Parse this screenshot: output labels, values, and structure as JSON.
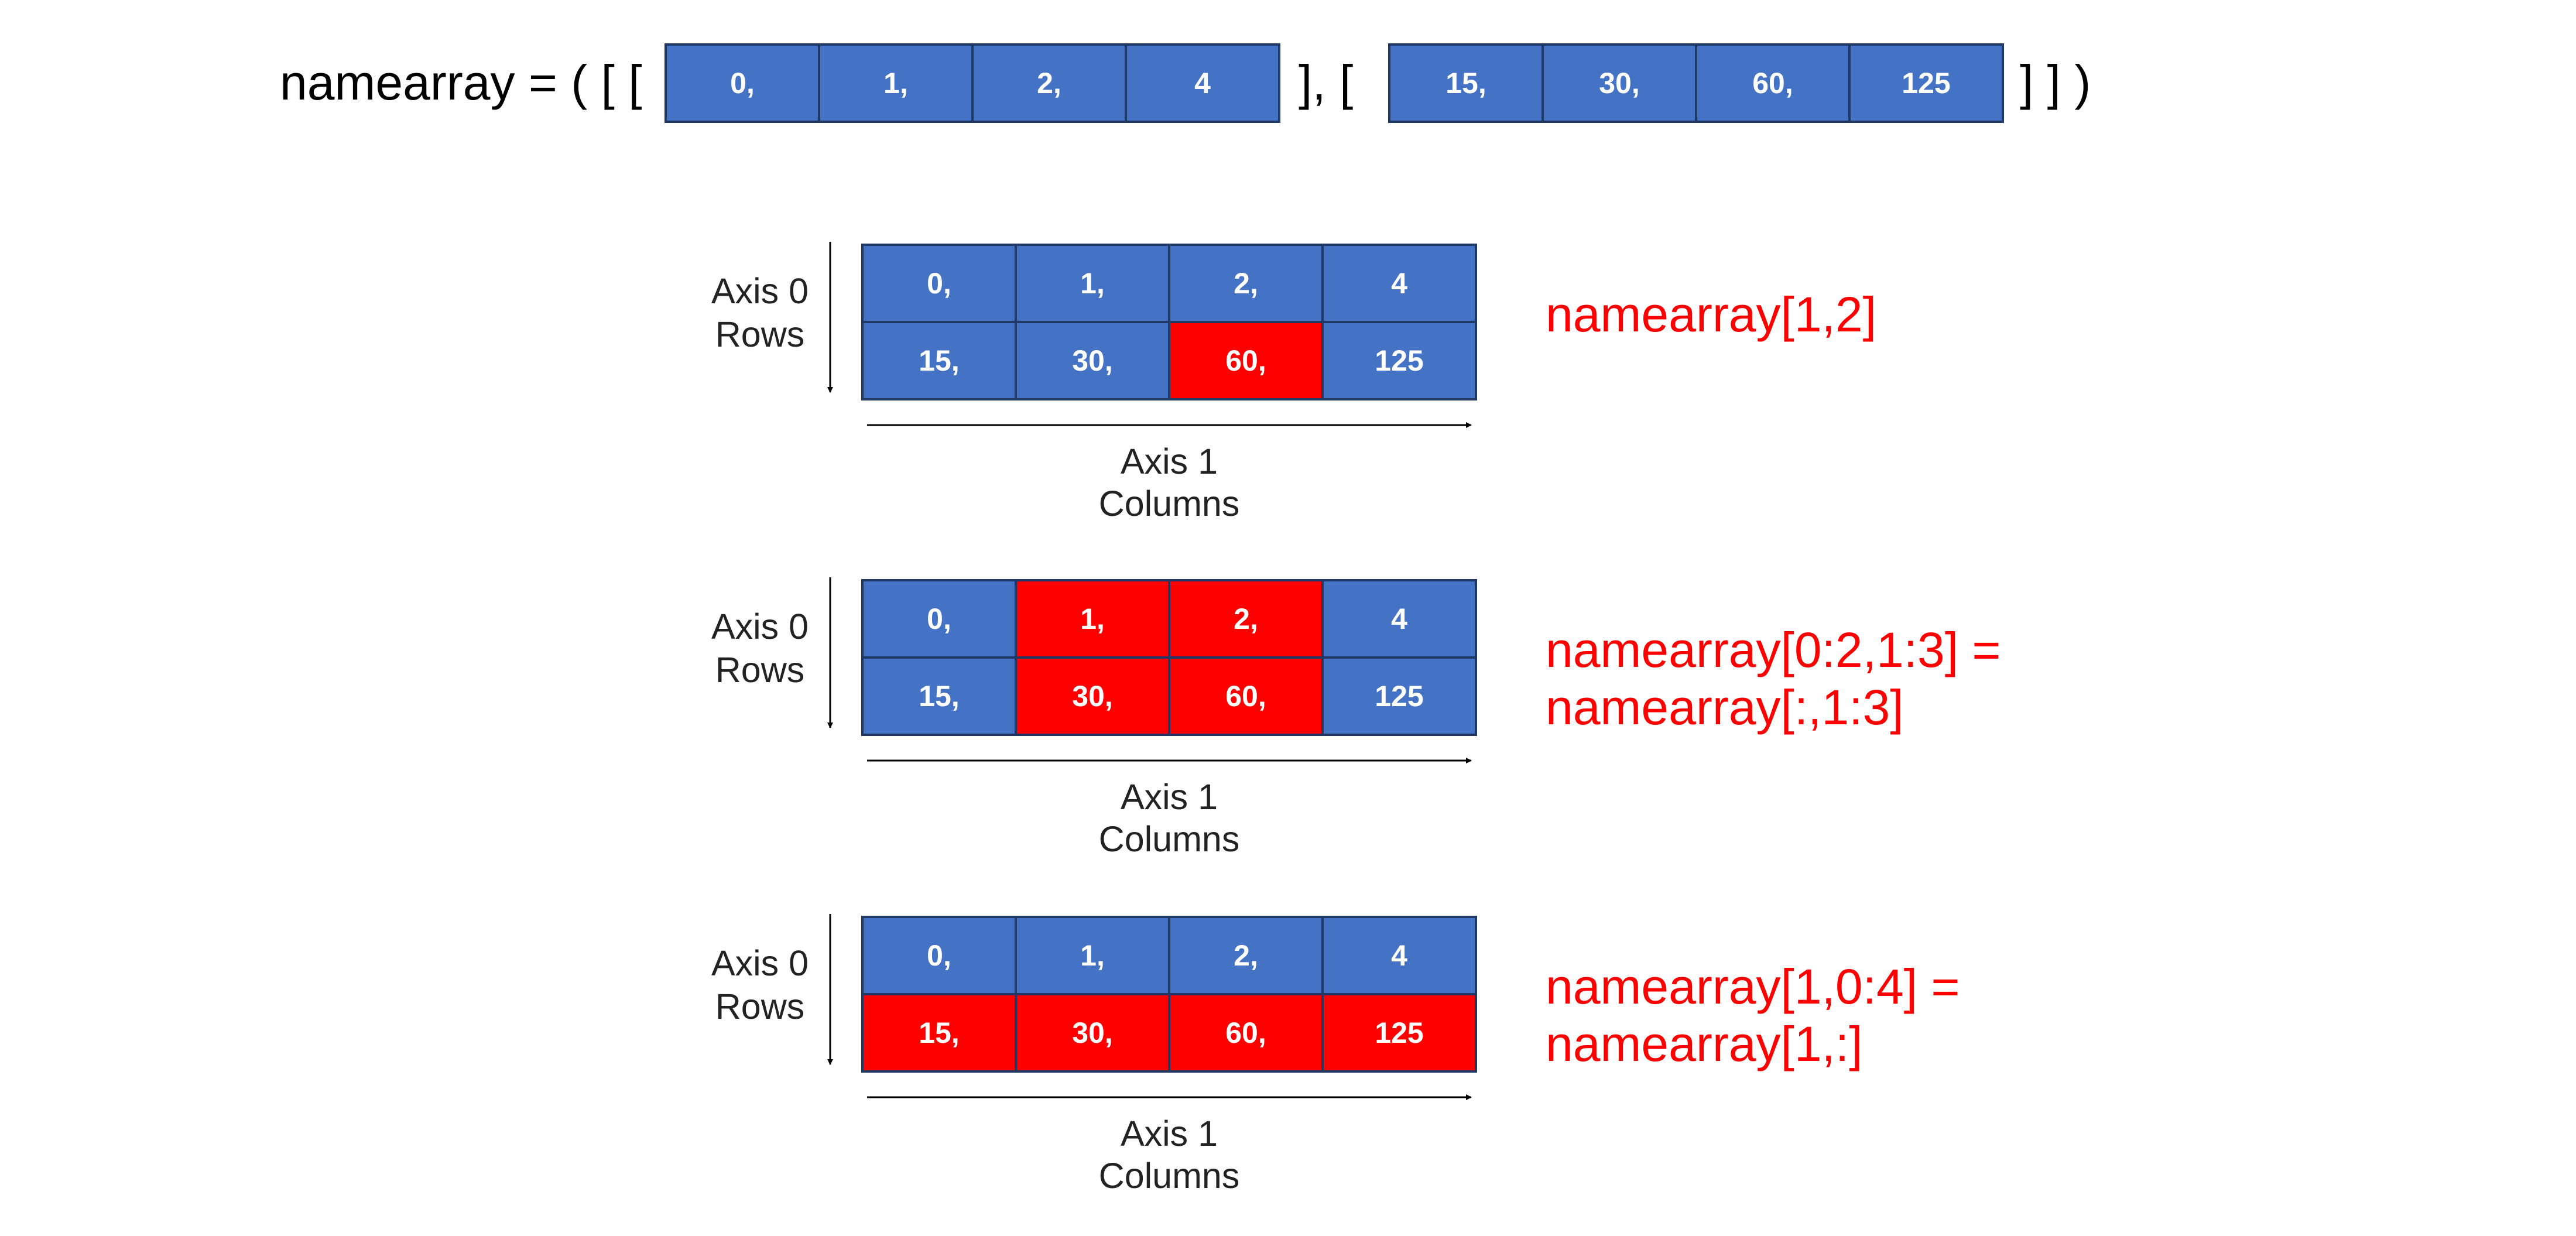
{
  "header": {
    "lead": "namearray = ( [ [",
    "middle": "], [",
    "tail": "] ] )",
    "row0": [
      "0,",
      "1,",
      "2,",
      "4"
    ],
    "row1": [
      "15,",
      "30,",
      "60,",
      "125"
    ]
  },
  "colors": {
    "cell": "#4472c4",
    "highlight": "#ff0000",
    "border": "#1f3864",
    "label": "#ff0000"
  },
  "examples": [
    {
      "axis0": [
        "Axis 0",
        "Rows"
      ],
      "axis1": [
        "Axis 1",
        "Columns"
      ],
      "grid": [
        [
          "0,",
          "1,",
          "2,",
          "4"
        ],
        [
          "15,",
          "30,",
          "60,",
          "125"
        ]
      ],
      "highlight": [
        [
          false,
          false,
          false,
          false
        ],
        [
          false,
          false,
          true,
          false
        ]
      ],
      "label": [
        "namearray[1,2]"
      ]
    },
    {
      "axis0": [
        "Axis 0",
        "Rows"
      ],
      "axis1": [
        "Axis 1",
        "Columns"
      ],
      "grid": [
        [
          "0,",
          "1,",
          "2,",
          "4"
        ],
        [
          "15,",
          "30,",
          "60,",
          "125"
        ]
      ],
      "highlight": [
        [
          false,
          true,
          true,
          false
        ],
        [
          false,
          true,
          true,
          false
        ]
      ],
      "label": [
        "namearray[0:2,1:3] =",
        "namearray[:,1:3]"
      ]
    },
    {
      "axis0": [
        "Axis 0",
        "Rows"
      ],
      "axis1": [
        "Axis 1",
        "Columns"
      ],
      "grid": [
        [
          "0,",
          "1,",
          "2,",
          "4"
        ],
        [
          "15,",
          "30,",
          "60,",
          "125"
        ]
      ],
      "highlight": [
        [
          false,
          false,
          false,
          false
        ],
        [
          true,
          true,
          true,
          true
        ]
      ],
      "label": [
        "namearray[1,0:4] =",
        "namearray[1,:]"
      ]
    }
  ]
}
